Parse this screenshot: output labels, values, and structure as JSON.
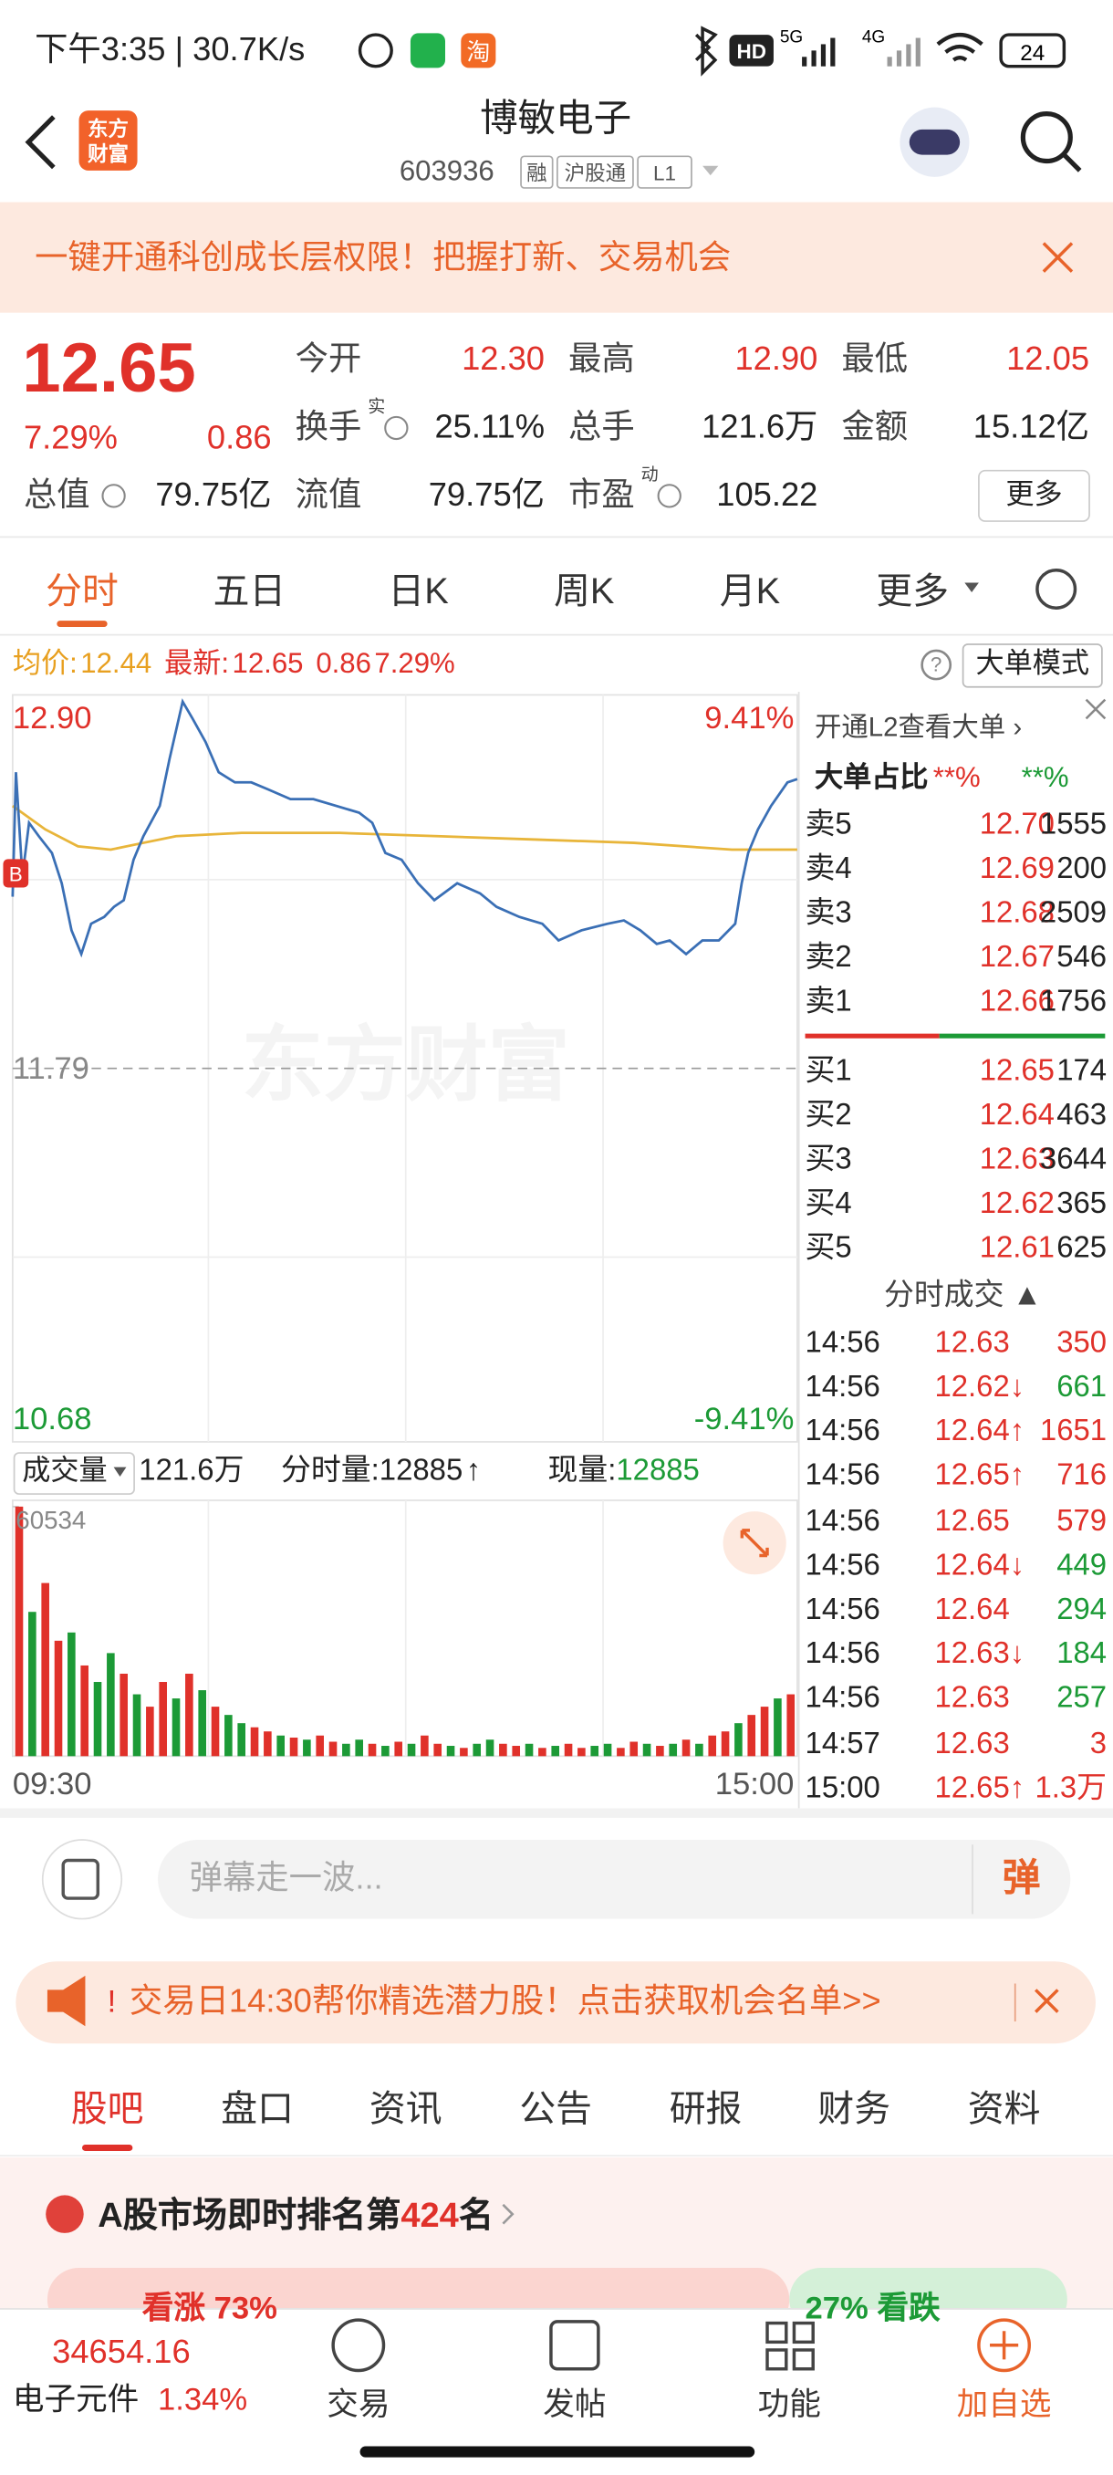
{
  "status_bar": {
    "time": "下午3:35 | 30.7K/s",
    "taobao": "淘",
    "hd": "HD",
    "net1": "5G",
    "net2": "4G",
    "battery": "24"
  },
  "header": {
    "logo": [
      "东方",
      "财富"
    ],
    "title": "博敏电子",
    "code": "603936",
    "tags": [
      "融",
      "沪股通",
      "L1"
    ]
  },
  "banner": {
    "text": "一键开通科创成长层权限！把握打新、交易机会"
  },
  "quote": {
    "price": "12.65",
    "change_pct": "7.29%",
    "change": "0.86",
    "fields": [
      {
        "label": "今开",
        "value": "12.30",
        "color": "#e0312a"
      },
      {
        "label": "最高",
        "value": "12.90",
        "color": "#e0312a"
      },
      {
        "label": "最低",
        "value": "12.05",
        "color": "#e0312a"
      },
      {
        "label": "换手",
        "sup": "实",
        "value": "25.11%",
        "color": "#222"
      },
      {
        "label": "总手",
        "value": "121.6万",
        "color": "#222"
      },
      {
        "label": "金额",
        "value": "15.12亿",
        "color": "#222"
      },
      {
        "label": "总值",
        "value": "79.75亿",
        "color": "#222"
      },
      {
        "label": "流值",
        "value": "79.75亿",
        "color": "#222"
      },
      {
        "label": "市盈",
        "sup": "动",
        "value": "105.22",
        "color": "#222"
      }
    ],
    "more": "更多"
  },
  "tabs": {
    "items": [
      "分时",
      "五日",
      "日K",
      "周K",
      "月K",
      "更多"
    ],
    "active": 0
  },
  "info_row": {
    "avg_label": "均价:",
    "avg": "12.44",
    "latest_label": "最新:",
    "latest": "12.65",
    "change": "0.86",
    "change_pct": "7.29%",
    "help": "?",
    "mode": "大单模式"
  },
  "intraday": {
    "type": "line",
    "watermark": "东方财富",
    "buy_marker": "B",
    "xlim": [
      0,
      240
    ],
    "ylim": [
      10.68,
      12.9
    ],
    "yticks": [
      {
        "value": 12.9,
        "label": "12.90"
      },
      {
        "value": 11.79,
        "label": "11.79"
      },
      {
        "value": 10.68,
        "label": "10.68"
      }
    ],
    "pct_labels": [
      "9.41%",
      "-9.41%"
    ],
    "price_color": "#3a6fb5",
    "avg_color": "#e8b53a",
    "x": [
      0,
      1,
      3,
      5,
      8,
      12,
      15,
      18,
      21,
      24,
      28,
      31,
      34,
      37,
      40,
      45,
      48,
      52,
      55,
      59,
      63,
      68,
      73,
      78,
      85,
      92,
      99,
      106,
      110,
      114,
      119,
      124,
      129,
      136,
      143,
      148,
      155,
      162,
      167,
      174,
      182,
      187,
      192,
      197,
      201,
      206,
      211,
      216,
      221,
      223,
      225,
      228,
      232,
      237,
      240
    ],
    "price": [
      12.3,
      12.67,
      12.36,
      12.52,
      12.48,
      12.43,
      12.34,
      12.2,
      12.13,
      12.22,
      12.24,
      12.27,
      12.29,
      12.41,
      12.48,
      12.57,
      12.71,
      12.88,
      12.83,
      12.76,
      12.67,
      12.64,
      12.64,
      12.62,
      12.59,
      12.59,
      12.57,
      12.55,
      12.52,
      12.43,
      12.41,
      12.34,
      12.29,
      12.34,
      12.31,
      12.27,
      12.24,
      12.22,
      12.17,
      12.2,
      12.22,
      12.23,
      12.2,
      12.16,
      12.17,
      12.13,
      12.17,
      12.17,
      12.22,
      12.34,
      12.43,
      12.5,
      12.57,
      12.64,
      12.65
    ],
    "avg_x": [
      0,
      10,
      20,
      30,
      40,
      50,
      70,
      100,
      130,
      160,
      190,
      220,
      240
    ],
    "avg": [
      12.57,
      12.5,
      12.45,
      12.44,
      12.46,
      12.48,
      12.49,
      12.49,
      12.48,
      12.47,
      12.46,
      12.44,
      12.44
    ],
    "volume": {
      "header": {
        "label": "成交量",
        "total": "121.6万",
        "tick_label": "分时量:12885",
        "tick_arrow": "↑",
        "now_label": "现量:",
        "now": "12885"
      },
      "ylim": [
        0,
        60534
      ],
      "yticks": [
        60534
      ],
      "xticks": [
        {
          "value": 0,
          "label": "09:30"
        },
        {
          "value": 240,
          "label": "15:00"
        }
      ],
      "up_color": "#e0312a",
      "down_color": "#1c9a36",
      "values": [
        60534,
        35000,
        42000,
        28000,
        30000,
        22000,
        18000,
        25000,
        20000,
        15000,
        12000,
        18000,
        14000,
        20000,
        16000,
        12000,
        10000,
        8000,
        7000,
        6000,
        5000,
        4500,
        4000,
        5000,
        3500,
        3000,
        4000,
        3000,
        2500,
        3500,
        3000,
        5000,
        3000,
        2500,
        2000,
        3000,
        4000,
        3000,
        2500,
        3000,
        2000,
        2500,
        3000,
        2000,
        2500,
        3000,
        2000,
        3500,
        3000,
        2500,
        3000,
        4000,
        3000,
        5000,
        6000,
        8000,
        10000,
        12000,
        14000,
        15000
      ],
      "up": [
        true,
        false,
        true,
        true,
        false,
        true,
        false,
        false,
        true,
        false,
        true,
        true,
        false,
        true,
        false,
        true,
        false,
        false,
        true,
        true,
        false,
        true,
        false,
        true,
        true,
        false,
        false,
        true,
        false,
        true,
        false,
        true,
        true,
        false,
        true,
        false,
        false,
        true,
        true,
        false,
        true,
        false,
        true,
        true,
        false,
        false,
        true,
        true,
        false,
        true,
        false,
        true,
        false,
        true,
        true,
        false,
        true,
        true,
        false,
        true
      ]
    }
  },
  "side_panel": {
    "l2": "开通L2查看大单 ›",
    "ratio_label": "大单占比",
    "ratio_buy": "**%",
    "ratio_sell": "**%",
    "sells": [
      {
        "label": "卖5",
        "price": "12.70",
        "qty": "1555"
      },
      {
        "label": "卖4",
        "price": "12.69",
        "qty": "200"
      },
      {
        "label": "卖3",
        "price": "12.68",
        "qty": "2509"
      },
      {
        "label": "卖2",
        "price": "12.67",
        "qty": "546"
      },
      {
        "label": "卖1",
        "price": "12.66",
        "qty": "1756"
      }
    ],
    "buys": [
      {
        "label": "买1",
        "price": "12.65",
        "qty": "174"
      },
      {
        "label": "买2",
        "price": "12.64",
        "qty": "463"
      },
      {
        "label": "买3",
        "price": "12.63",
        "qty": "3644"
      },
      {
        "label": "买4",
        "price": "12.62",
        "qty": "365"
      },
      {
        "label": "买5",
        "price": "12.61",
        "qty": "625"
      }
    ],
    "trades_title": "分时成交 ▲",
    "trades": [
      {
        "time": "14:56",
        "price": "12.63",
        "qty": "350",
        "color": "#e0312a"
      },
      {
        "time": "14:56",
        "price": "12.62↓",
        "qty": "661",
        "color": "#1c9a36"
      },
      {
        "time": "14:56",
        "price": "12.64↑",
        "qty": "1651",
        "color": "#e0312a"
      },
      {
        "time": "14:56",
        "price": "12.65↑",
        "qty": "716",
        "color": "#e0312a"
      },
      {
        "time": "14:56",
        "price": "12.65",
        "qty": "579",
        "color": "#e0312a"
      },
      {
        "time": "14:56",
        "price": "12.64↓",
        "qty": "449",
        "color": "#1c9a36"
      },
      {
        "time": "14:56",
        "price": "12.64",
        "qty": "294",
        "color": "#1c9a36"
      },
      {
        "time": "14:56",
        "price": "12.63↓",
        "qty": "184",
        "color": "#1c9a36"
      },
      {
        "time": "14:56",
        "price": "12.63",
        "qty": "257",
        "color": "#1c9a36"
      },
      {
        "time": "14:57",
        "price": "12.63",
        "qty": "3",
        "color": "#e0312a"
      },
      {
        "time": "15:00",
        "price": "12.65↑",
        "qty": "1.3万",
        "color": "#e0312a"
      }
    ]
  },
  "danmu": {
    "placeholder": "弹幕走一波...",
    "button": "弹"
  },
  "ad": {
    "mark": "!",
    "text": "交易日14:30帮你精选潜力股！点击获取机会名单>>"
  },
  "sub_tabs": {
    "items": [
      "股吧",
      "盘口",
      "资讯",
      "公告",
      "研报",
      "财务",
      "资料"
    ],
    "active": 0
  },
  "ranking": {
    "prefix": "A股市场即时排名第",
    "rank": "424",
    "suffix": "名",
    "bull": "看涨 73%",
    "bear": "27% 看跌"
  },
  "bottom": {
    "index_value": "34654.16",
    "sector": "电子元件",
    "sector_change": "1.34%",
    "nav": [
      "交易",
      "发帖",
      "功能",
      "加自选"
    ]
  }
}
